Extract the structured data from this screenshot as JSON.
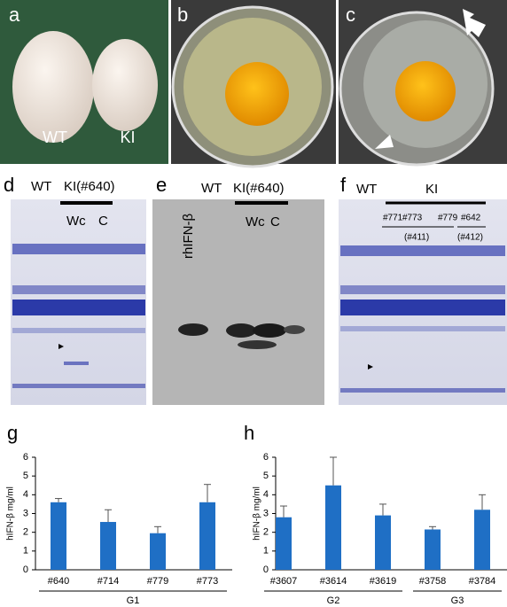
{
  "panels": {
    "a": {
      "letter": "a",
      "labels": [
        "WT",
        "KI"
      ]
    },
    "b": {
      "letter": "b"
    },
    "c": {
      "letter": "c"
    },
    "d": {
      "letter": "d",
      "labels": [
        "WT",
        "KI(#640)",
        "Wc",
        "C"
      ]
    },
    "e": {
      "letter": "e",
      "labels": [
        "rhIFN-β",
        "WT",
        "KI(#640)",
        "Wc",
        "C"
      ]
    },
    "f": {
      "letter": "f",
      "labels": [
        "WT",
        "KI",
        "#771",
        "#773",
        "#779",
        "#642",
        "(#411)",
        "(#412)"
      ]
    }
  },
  "chart_data": [
    {
      "type": "bar",
      "panel": "g",
      "ylabel": "hIFN-β mg/ml",
      "color": "#1f6fc5",
      "categories": [
        "#640",
        "#714",
        "#779",
        "#773"
      ],
      "values": [
        3.6,
        2.55,
        1.95,
        3.6
      ],
      "errors": [
        0.2,
        0.65,
        0.35,
        0.95
      ],
      "groups": [
        {
          "label": "G1",
          "size": 4
        }
      ],
      "ylim": [
        0,
        6
      ],
      "yticks": [
        0,
        1,
        2,
        3,
        4,
        5,
        6
      ]
    },
    {
      "type": "bar",
      "panel": "h",
      "ylabel": "hIFN-β mg/ml",
      "color": "#1f6fc5",
      "categories": [
        "#3607",
        "#3614",
        "#3619",
        "#3758",
        "#3784"
      ],
      "values": [
        2.8,
        4.5,
        2.9,
        2.15,
        3.2
      ],
      "errors": [
        0.6,
        1.5,
        0.6,
        0.15,
        0.8
      ],
      "groups": [
        {
          "label": "G2",
          "size": 3
        },
        {
          "label": "G3",
          "size": 2
        }
      ],
      "ylim": [
        0,
        6
      ],
      "yticks": [
        0,
        1,
        2,
        3,
        4,
        5,
        6
      ]
    }
  ]
}
